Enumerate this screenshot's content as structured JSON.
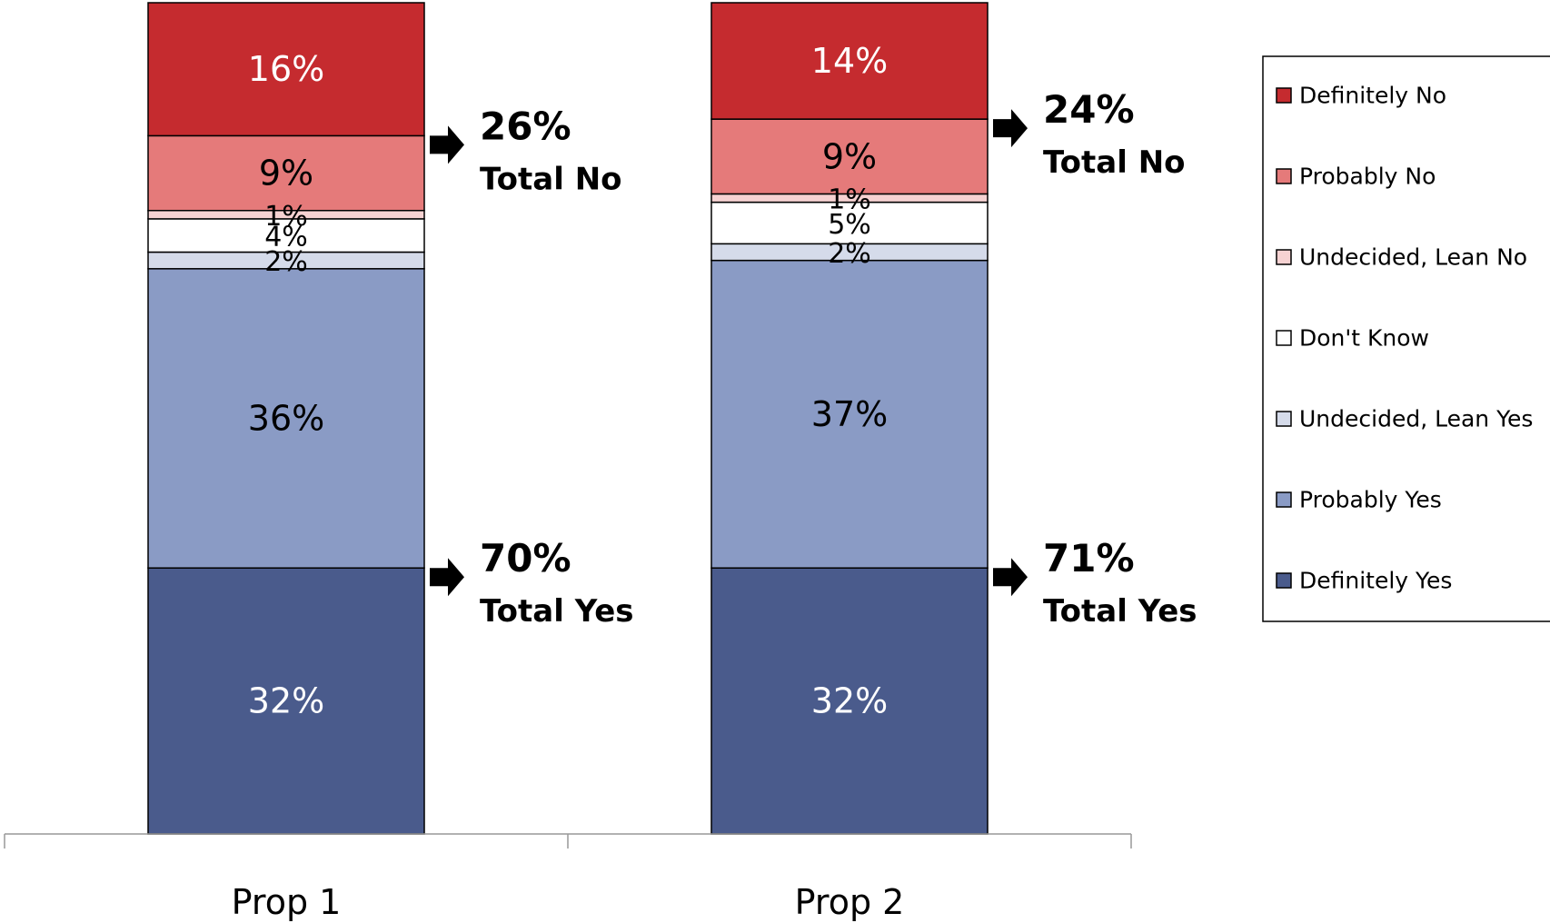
{
  "chart_data": {
    "type": "bar",
    "stacked": true,
    "percent_scale": true,
    "categories": [
      "Prop 1",
      "Prop 2"
    ],
    "series": [
      {
        "name": "Definitely Yes",
        "values": [
          32,
          32
        ],
        "labels": [
          "32%",
          "32%"
        ],
        "color": "#4a5b8c",
        "label_color": "#ffffff"
      },
      {
        "name": "Probably Yes",
        "values": [
          36,
          37
        ],
        "labels": [
          "36%",
          "37%"
        ],
        "color": "#8a9bc5",
        "label_color": "#000000"
      },
      {
        "name": "Undecided, Lean Yes",
        "values": [
          2,
          2
        ],
        "labels": [
          "2%",
          "2%"
        ],
        "color": "#d5dbea",
        "label_color": "#000000"
      },
      {
        "name": "Don't Know",
        "values": [
          4,
          5
        ],
        "labels": [
          "4%",
          "5%"
        ],
        "color": "#ffffff",
        "label_color": "#000000"
      },
      {
        "name": "Undecided, Lean No",
        "values": [
          1,
          1
        ],
        "labels": [
          "1%",
          "1%"
        ],
        "color": "#f6d2d2",
        "label_color": "#000000"
      },
      {
        "name": "Probably No",
        "values": [
          9,
          9
        ],
        "labels": [
          "9%",
          "9%"
        ],
        "color": "#e57a7a",
        "label_color": "#000000"
      },
      {
        "name": "Definitely No",
        "values": [
          16,
          14
        ],
        "labels": [
          "16%",
          "14%"
        ],
        "color": "#c52b2f",
        "label_color": "#ffffff"
      }
    ],
    "annotations": [
      {
        "category": "Prop 1",
        "kind": "no",
        "value": "26%",
        "text": "Total No"
      },
      {
        "category": "Prop 1",
        "kind": "yes",
        "value": "70%",
        "text": "Total Yes"
      },
      {
        "category": "Prop 2",
        "kind": "no",
        "value": "24%",
        "text": "Total No"
      },
      {
        "category": "Prop 2",
        "kind": "yes",
        "value": "71%",
        "text": "Total Yes"
      }
    ],
    "legend": {
      "placement": "right",
      "items": [
        "Definitely No",
        "Probably No",
        "Undecided, Lean No",
        "Don't Know",
        "Undecided, Lean Yes",
        "Probably Yes",
        "Definitely Yes"
      ]
    },
    "grid": false
  }
}
